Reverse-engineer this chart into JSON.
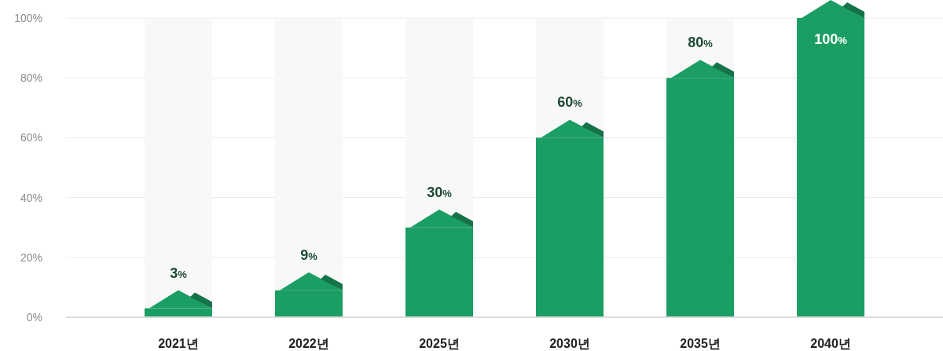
{
  "chart_data": {
    "type": "bar",
    "categories": [
      "2021년",
      "2022년",
      "2025년",
      "2030년",
      "2035년",
      "2040년"
    ],
    "values": [
      3,
      9,
      30,
      60,
      80,
      100
    ],
    "color": "#1b9e63",
    "ylim": [
      0,
      100
    ],
    "yticks": [
      {
        "value": 0,
        "label": "0%"
      },
      {
        "value": 20,
        "label": "20%"
      },
      {
        "value": 40,
        "label": "40%"
      },
      {
        "value": 60,
        "label": "60%"
      },
      {
        "value": 80,
        "label": "80%"
      },
      {
        "value": 100,
        "label": "100%"
      }
    ],
    "grid": "y",
    "value_labels": [
      "3%",
      "9%",
      "30%",
      "60%",
      "80%",
      "100%"
    ]
  }
}
